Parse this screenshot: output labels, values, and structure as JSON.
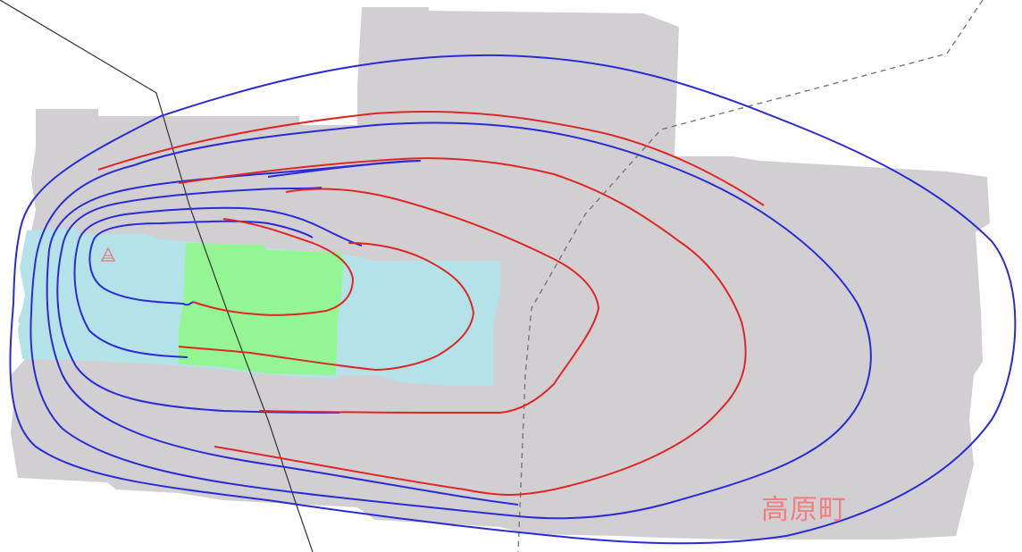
{
  "map": {
    "place_label": "高原町",
    "colors": {
      "background": "#ffffff",
      "gray_area": "#d1cfd1",
      "cyan_area": "#b3e2e8",
      "green_area": "#93f693",
      "blue_contour": "#2b2bd6",
      "red_contour": "#e02525",
      "road_line": "#333333",
      "boundary_dashed": "#777777",
      "label_color": "#f08080",
      "marker_color": "#e27a7a"
    },
    "legend_items": [],
    "marker": {
      "icon": "hatched-triangle-icon"
    }
  }
}
